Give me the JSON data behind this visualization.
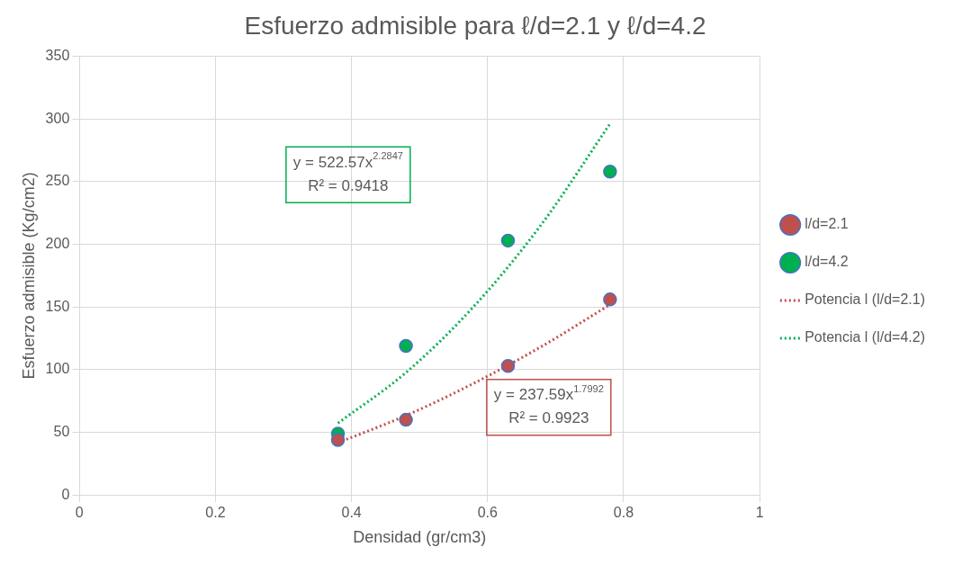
{
  "chart_data": {
    "type": "scatter",
    "title": "Esfuerzo admisible para ℓ/d=2.1 y ℓ/d=4.2",
    "xlabel": "Densidad (gr/cm3)",
    "ylabel": "Esfuerzo admisible (Kg/cm2)",
    "xlim": [
      0,
      1
    ],
    "xticks": [
      0,
      0.2,
      0.4,
      0.6,
      0.8,
      1
    ],
    "ylim": [
      0,
      350
    ],
    "yticks": [
      0,
      50,
      100,
      150,
      200,
      250,
      300,
      350
    ],
    "grid": true,
    "legend": "right",
    "marker": "circle",
    "series": [
      {
        "name": "l/d=2.1",
        "color": "#c0504d",
        "x": [
          0.38,
          0.48,
          0.63,
          0.78
        ],
        "values": [
          44,
          60,
          103,
          156
        ]
      },
      {
        "name": "l/d=4.2",
        "color": "#00b050",
        "x": [
          0.38,
          0.48,
          0.63,
          0.78
        ],
        "values": [
          49,
          119,
          203,
          258
        ]
      },
      {
        "name": "Potencia l (l/d=2.1)",
        "type": "line",
        "line_style": "dotted",
        "marker": "none",
        "color": "#c0504d",
        "x": [
          0.38,
          0.48,
          0.58,
          0.68,
          0.78
        ],
        "values": [
          41.7,
          63.4,
          89.2,
          118.7,
          151.9
        ]
      },
      {
        "name": "Potencia l (l/d=4.2)",
        "type": "line",
        "line_style": "dotted",
        "marker": "none",
        "color": "#00b050",
        "x": [
          0.38,
          0.48,
          0.58,
          0.68,
          0.78
        ],
        "values": [
          57.3,
          97.7,
          150.6,
          216.5,
          296.2
        ]
      }
    ],
    "annotations": [
      "y = 522.57x$^{2.2847}$\nR² = 0.9418",
      "y = 237.59x$^{1.7992}$\nR² = 0.9923"
    ]
  }
}
